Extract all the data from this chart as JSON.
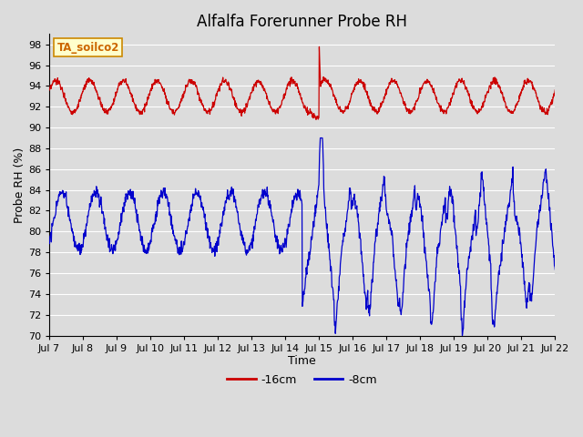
{
  "title": "Alfalfa Forerunner Probe RH",
  "xlabel": "Time",
  "ylabel": "Probe RH (%)",
  "ylim": [
    70,
    99
  ],
  "yticks": [
    70,
    72,
    74,
    76,
    78,
    80,
    82,
    84,
    86,
    88,
    90,
    92,
    94,
    96,
    98
  ],
  "xtick_labels": [
    "Jul 7",
    "Jul 8",
    "Jul 9",
    "Jul 10",
    "Jul 11",
    "Jul 12",
    "Jul 13",
    "Jul 14",
    "Jul 15",
    "Jul 16",
    "Jul 17",
    "Jul 18",
    "Jul 19",
    "Jul 20",
    "Jul 21",
    "Jul 22"
  ],
  "background_color": "#dcdcdc",
  "plot_bg_color": "#dcdcdc",
  "grid_color": "#ffffff",
  "annotation_text": "TA_soilco2",
  "annotation_bg": "#ffffcc",
  "annotation_border": "#cc8800",
  "red_color": "#cc0000",
  "blue_color": "#0000cc",
  "legend_red_label": "-16cm",
  "legend_blue_label": "-8cm",
  "title_fontsize": 12,
  "axis_fontsize": 9,
  "tick_fontsize": 8
}
